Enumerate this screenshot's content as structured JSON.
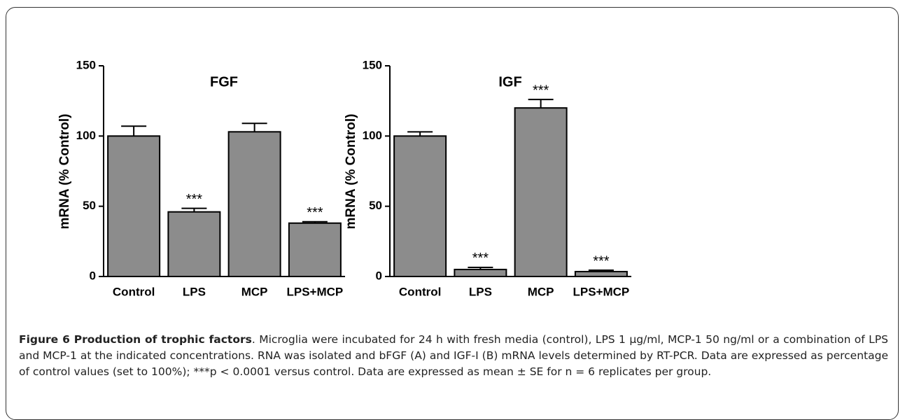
{
  "chart_data": [
    {
      "type": "bar",
      "title": "FGF",
      "y_label": "mRNA (% Control)",
      "categories": [
        "Control",
        "LPS",
        "MCP",
        "LPS+MCP"
      ],
      "values": [
        100,
        46,
        103,
        38
      ],
      "errors": [
        7,
        2.5,
        6,
        1
      ],
      "color": "#8c8c8c",
      "ylim": [
        0,
        150
      ],
      "yticks": [
        0,
        50,
        100,
        150
      ],
      "annotations": [
        {
          "text": "***",
          "category": "LPS"
        },
        {
          "text": "***",
          "category": "LPS+MCP"
        }
      ]
    },
    {
      "type": "bar",
      "title": "IGF",
      "y_label": "mRNA (% Control)",
      "categories": [
        "Control",
        "LPS",
        "MCP",
        "LPS+MCP"
      ],
      "values": [
        100,
        5,
        120,
        3.5
      ],
      "errors": [
        3,
        1.5,
        6,
        1
      ],
      "color": "#8c8c8c",
      "ylim": [
        0,
        150
      ],
      "yticks": [
        0,
        50,
        100,
        150
      ],
      "annotations": [
        {
          "text": "***",
          "category": "LPS"
        },
        {
          "text": "***",
          "category": "MCP"
        },
        {
          "text": "***",
          "category": "LPS+MCP"
        }
      ]
    }
  ],
  "caption": {
    "title": "Figure 6 Production of trophic factors",
    "text": ". Microglia were incubated for 24 h with fresh media (control), LPS 1 µg/ml, MCP-1 50 ng/ml or a combination of LPS and MCP-1 at the indicated concentrations. RNA was isolated and bFGF (A) and IGF-I (B) mRNA levels determined by RT-PCR. Data are expressed as percentage of control values (set to 100%); ***p < 0.0001 versus control. Data are expressed as mean ± SE for n = 6 replicates per group."
  }
}
